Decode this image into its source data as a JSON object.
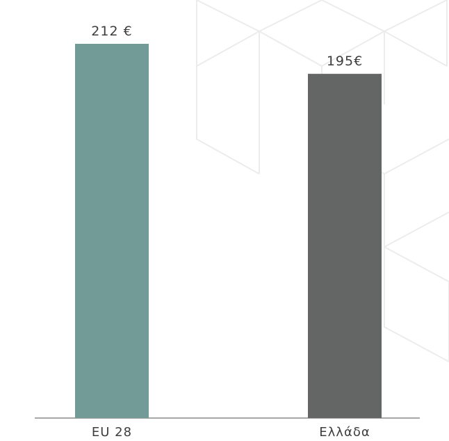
{
  "chart_data": {
    "type": "bar",
    "title": "",
    "xlabel": "",
    "ylabel": "",
    "categories": [
      "EU 28",
      "Ελλάδα"
    ],
    "values": [
      212,
      195
    ],
    "data_labels": [
      "212 €",
      "195€"
    ],
    "colors": [
      "#729a97",
      "#646565"
    ],
    "ylim": [
      0,
      212
    ],
    "grid": false,
    "legend": "none"
  }
}
